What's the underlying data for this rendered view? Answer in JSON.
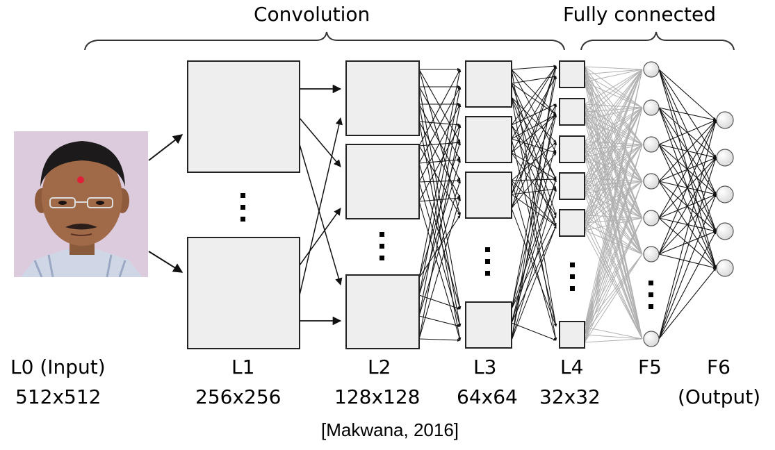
{
  "header": {
    "convolution": "Convolution",
    "fully_connected": "Fully connected"
  },
  "layers": [
    {
      "name": "L0 (Input)",
      "size": "512x512"
    },
    {
      "name": "L1",
      "size": "256x256"
    },
    {
      "name": "L2",
      "size": "128x128"
    },
    {
      "name": "L3",
      "size": "64x64"
    },
    {
      "name": "L4",
      "size": "32x32"
    },
    {
      "name": "F5",
      "size": ""
    },
    {
      "name": "F6",
      "size": "(Output)"
    }
  ],
  "caption": "[Makwana, 2016]",
  "colors": {
    "box_fill": "#eeeeee",
    "box_stroke": "#222222",
    "fc_gray_lines": "#b0b0b0",
    "neuron_fill": "#f2f2f2",
    "photo_background": "#d9c9db"
  }
}
